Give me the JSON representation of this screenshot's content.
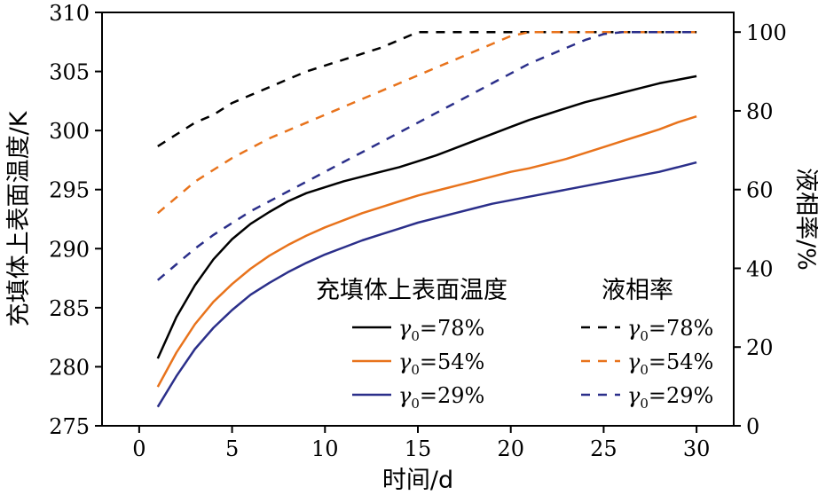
{
  "chart_data": {
    "type": "line",
    "xlabel": "时间/d",
    "ylabel_left": "充填体上表面温度/K",
    "ylabel_right": "液相率/%",
    "xlim": [
      -2,
      32
    ],
    "xticks": [
      0,
      5,
      10,
      15,
      20,
      25,
      30
    ],
    "ylim_left": [
      275,
      310
    ],
    "yticks_left": [
      275,
      280,
      285,
      290,
      295,
      300,
      305,
      310
    ],
    "ylim_right": [
      0,
      105
    ],
    "yticks_right": [
      0,
      20,
      40,
      60,
      80,
      100
    ],
    "colors": {
      "black": "#000000",
      "orange": "#e8731c",
      "navy": "#2b2f8a"
    },
    "legend": {
      "placement": "lower-right",
      "temp_heading": "充填体上表面温度",
      "liquid_heading": "液相率",
      "temp_entries": [
        {
          "series": 0,
          "gamma": "γ",
          "sub": "0",
          "rest": "=78%"
        },
        {
          "series": 1,
          "gamma": "γ",
          "sub": "0",
          "rest": "=54%"
        },
        {
          "series": 2,
          "gamma": "γ",
          "sub": "0",
          "rest": "=29%"
        }
      ],
      "liquid_entries": [
        {
          "series": 3,
          "gamma": "γ",
          "sub": "0",
          "rest": "=78%"
        },
        {
          "series": 4,
          "gamma": "γ",
          "sub": "0",
          "rest": "=54%"
        },
        {
          "series": 5,
          "gamma": "γ",
          "sub": "0",
          "rest": "=29%"
        }
      ]
    },
    "series": [
      {
        "axis": "left",
        "style": "solid",
        "color": "#000000",
        "x": [
          1,
          2,
          3,
          4,
          5,
          6,
          7,
          8,
          9,
          10,
          11,
          12,
          13,
          14,
          15,
          16,
          17,
          18,
          19,
          20,
          21,
          22,
          23,
          24,
          25,
          26,
          27,
          28,
          29,
          30
        ],
        "y": [
          280.7,
          284.2,
          286.9,
          289.1,
          290.8,
          292.1,
          293.1,
          294.0,
          294.7,
          295.2,
          295.7,
          296.1,
          296.5,
          296.9,
          297.4,
          297.9,
          298.5,
          299.1,
          299.7,
          300.3,
          300.9,
          301.4,
          301.9,
          302.4,
          302.8,
          303.2,
          303.6,
          304.0,
          304.3,
          304.6
        ]
      },
      {
        "axis": "left",
        "style": "solid",
        "color": "#e8731c",
        "x": [
          1,
          2,
          3,
          4,
          5,
          6,
          7,
          8,
          9,
          10,
          11,
          12,
          13,
          14,
          15,
          16,
          17,
          18,
          19,
          20,
          21,
          22,
          23,
          24,
          25,
          26,
          27,
          28,
          29,
          30
        ],
        "y": [
          278.3,
          281.2,
          283.6,
          285.5,
          287.0,
          288.3,
          289.4,
          290.3,
          291.1,
          291.8,
          292.4,
          293.0,
          293.5,
          294.0,
          294.5,
          294.9,
          295.3,
          295.7,
          296.1,
          296.5,
          296.8,
          297.2,
          297.6,
          298.1,
          298.6,
          299.1,
          299.6,
          300.1,
          300.7,
          301.2
        ]
      },
      {
        "axis": "left",
        "style": "solid",
        "color": "#2b2f8a",
        "x": [
          1,
          2,
          3,
          4,
          5,
          6,
          7,
          8,
          9,
          10,
          11,
          12,
          13,
          14,
          15,
          16,
          17,
          18,
          19,
          20,
          21,
          22,
          23,
          24,
          25,
          26,
          27,
          28,
          29,
          30
        ],
        "y": [
          276.6,
          279.2,
          281.5,
          283.3,
          284.8,
          286.1,
          287.1,
          288.0,
          288.8,
          289.5,
          290.1,
          290.7,
          291.2,
          291.7,
          292.2,
          292.6,
          293.0,
          293.4,
          293.8,
          294.1,
          294.4,
          294.7,
          295.0,
          295.3,
          295.6,
          295.9,
          296.2,
          296.5,
          296.9,
          297.3
        ]
      },
      {
        "axis": "right",
        "style": "dashed",
        "color": "#000000",
        "x": [
          1,
          2,
          3,
          4,
          5,
          6,
          7,
          8,
          9,
          10,
          11,
          12,
          13,
          14,
          15,
          16,
          17,
          18,
          19,
          20,
          21,
          22,
          23,
          24,
          25,
          26,
          27,
          28,
          29,
          30
        ],
        "y": [
          71,
          74,
          77,
          79,
          82,
          84,
          86,
          88,
          90,
          91.5,
          93,
          94.5,
          96,
          98,
          100,
          100,
          100,
          100,
          100,
          100,
          100,
          100,
          100,
          100,
          100,
          100,
          100,
          100,
          100,
          100
        ]
      },
      {
        "axis": "right",
        "style": "dashed",
        "color": "#e8731c",
        "x": [
          1,
          2,
          3,
          4,
          5,
          6,
          7,
          8,
          9,
          10,
          11,
          12,
          13,
          14,
          15,
          16,
          17,
          18,
          19,
          20,
          21,
          22,
          23,
          24,
          25,
          26,
          27,
          28,
          29,
          30
        ],
        "y": [
          54,
          58,
          62,
          65,
          68,
          70.5,
          73,
          75,
          77,
          79,
          81,
          83,
          85,
          87,
          89,
          91,
          93,
          95,
          97,
          99,
          100,
          100,
          100,
          100,
          100,
          100,
          100,
          100,
          100,
          100
        ]
      },
      {
        "axis": "right",
        "style": "dashed",
        "color": "#2b2f8a",
        "x": [
          1,
          2,
          3,
          4,
          5,
          6,
          7,
          8,
          9,
          10,
          11,
          12,
          13,
          14,
          15,
          16,
          17,
          18,
          19,
          20,
          21,
          22,
          23,
          24,
          25,
          26,
          27,
          28,
          29,
          30
        ],
        "y": [
          37,
          41,
          45,
          48.5,
          51.5,
          54.5,
          57,
          59.5,
          62,
          64.5,
          67,
          69.5,
          72,
          74.5,
          77,
          79.5,
          82,
          84.5,
          87,
          89.5,
          92,
          94,
          96,
          98,
          99.5,
          100,
          100,
          100,
          100,
          100
        ]
      }
    ]
  }
}
